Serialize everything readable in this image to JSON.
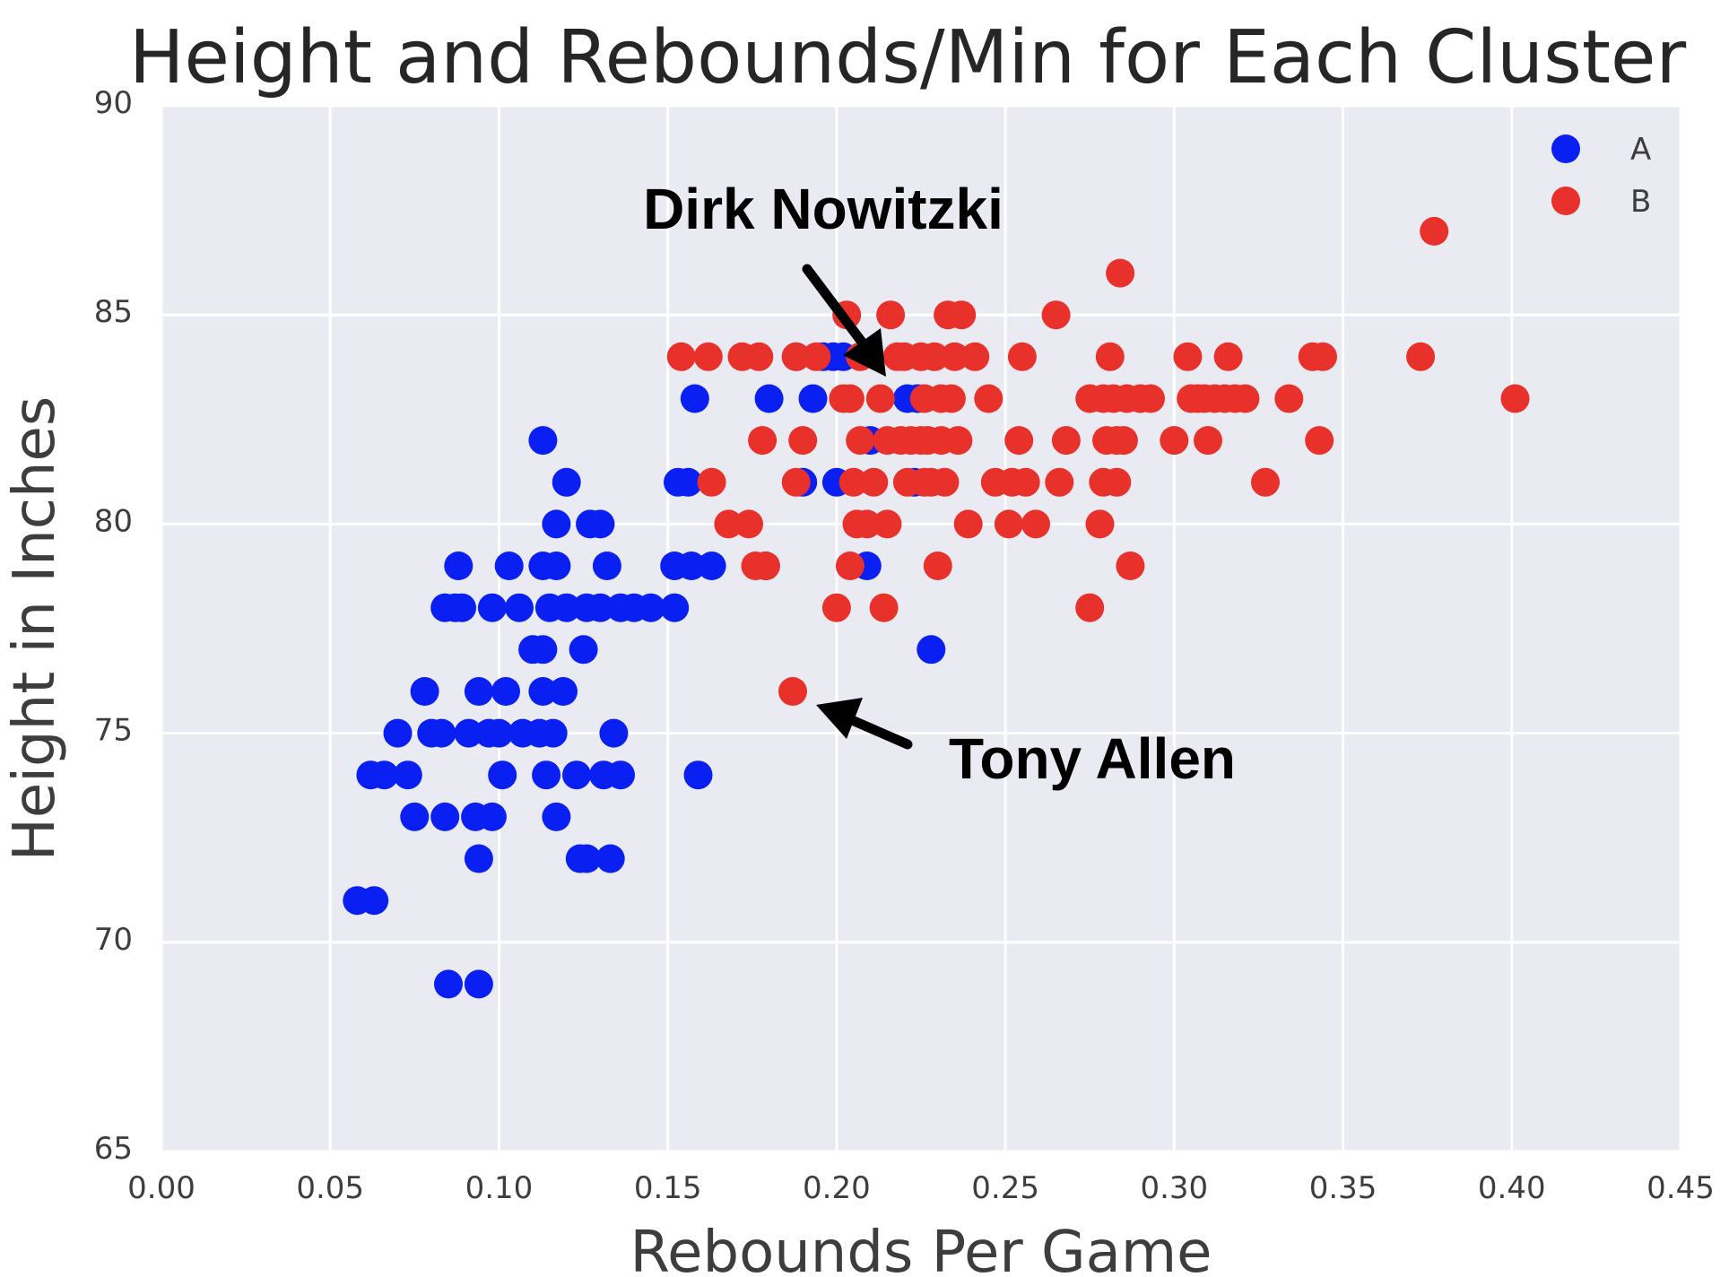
{
  "chart_data": {
    "type": "scatter",
    "title": "Height and Rebounds/Min for Each Cluster",
    "xlabel": "Rebounds Per Game",
    "ylabel": "Height in Inches",
    "xlim": [
      0.0,
      0.45
    ],
    "ylim": [
      65,
      90
    ],
    "xticks": [
      "0.00",
      "0.05",
      "0.10",
      "0.15",
      "0.20",
      "0.25",
      "0.30",
      "0.35",
      "0.40",
      "0.45"
    ],
    "yticks": [
      "65",
      "70",
      "75",
      "80",
      "85",
      "90"
    ],
    "grid": true,
    "legend_position": "top-right",
    "background_color": "#eaeaf2",
    "series": [
      {
        "name": "A",
        "color": "#0a1ff2",
        "points": [
          [
            0.058,
            71
          ],
          [
            0.063,
            71
          ],
          [
            0.062,
            74
          ],
          [
            0.066,
            74
          ],
          [
            0.073,
            74
          ],
          [
            0.07,
            75
          ],
          [
            0.075,
            73
          ],
          [
            0.078,
            76
          ],
          [
            0.08,
            75
          ],
          [
            0.083,
            75
          ],
          [
            0.084,
            73
          ],
          [
            0.084,
            78
          ],
          [
            0.087,
            78
          ],
          [
            0.088,
            79
          ],
          [
            0.089,
            78
          ],
          [
            0.085,
            69
          ],
          [
            0.094,
            69
          ],
          [
            0.091,
            75
          ],
          [
            0.093,
            73
          ],
          [
            0.094,
            76
          ],
          [
            0.094,
            72
          ],
          [
            0.097,
            75
          ],
          [
            0.098,
            78
          ],
          [
            0.098,
            73
          ],
          [
            0.1,
            75
          ],
          [
            0.101,
            74
          ],
          [
            0.102,
            76
          ],
          [
            0.103,
            79
          ],
          [
            0.106,
            78
          ],
          [
            0.107,
            75
          ],
          [
            0.11,
            77
          ],
          [
            0.112,
            75
          ],
          [
            0.113,
            77
          ],
          [
            0.113,
            79
          ],
          [
            0.113,
            82
          ],
          [
            0.113,
            76
          ],
          [
            0.114,
            74
          ],
          [
            0.115,
            78
          ],
          [
            0.116,
            75
          ],
          [
            0.117,
            80
          ],
          [
            0.117,
            79
          ],
          [
            0.117,
            73
          ],
          [
            0.119,
            76
          ],
          [
            0.12,
            81
          ],
          [
            0.12,
            78
          ],
          [
            0.123,
            74
          ],
          [
            0.124,
            72
          ],
          [
            0.125,
            77
          ],
          [
            0.126,
            78
          ],
          [
            0.126,
            72
          ],
          [
            0.127,
            80
          ],
          [
            0.13,
            80
          ],
          [
            0.13,
            78
          ],
          [
            0.131,
            74
          ],
          [
            0.132,
            79
          ],
          [
            0.133,
            72
          ],
          [
            0.134,
            75
          ],
          [
            0.136,
            74
          ],
          [
            0.136,
            78
          ],
          [
            0.14,
            78
          ],
          [
            0.145,
            78
          ],
          [
            0.152,
            79
          ],
          [
            0.153,
            81
          ],
          [
            0.152,
            78
          ],
          [
            0.156,
            81
          ],
          [
            0.157,
            79
          ],
          [
            0.158,
            83
          ],
          [
            0.159,
            74
          ],
          [
            0.163,
            79
          ],
          [
            0.179,
            79
          ],
          [
            0.18,
            83
          ],
          [
            0.188,
            84
          ],
          [
            0.19,
            81
          ],
          [
            0.193,
            83
          ],
          [
            0.196,
            84
          ],
          [
            0.199,
            84
          ],
          [
            0.2,
            81
          ],
          [
            0.202,
            84
          ],
          [
            0.209,
            79
          ],
          [
            0.21,
            82
          ],
          [
            0.221,
            83
          ],
          [
            0.223,
            81
          ],
          [
            0.224,
            83
          ],
          [
            0.228,
            77
          ]
        ]
      },
      {
        "name": "B",
        "color": "#e8312a",
        "points": [
          [
            0.154,
            84
          ],
          [
            0.162,
            84
          ],
          [
            0.163,
            81
          ],
          [
            0.168,
            80
          ],
          [
            0.172,
            84
          ],
          [
            0.174,
            80
          ],
          [
            0.176,
            79
          ],
          [
            0.177,
            84
          ],
          [
            0.178,
            82
          ],
          [
            0.179,
            79
          ],
          [
            0.188,
            84
          ],
          [
            0.188,
            81
          ],
          [
            0.187,
            76
          ],
          [
            0.19,
            82
          ],
          [
            0.194,
            84
          ],
          [
            0.2,
            78
          ],
          [
            0.202,
            83
          ],
          [
            0.203,
            85
          ],
          [
            0.204,
            83
          ],
          [
            0.204,
            79
          ],
          [
            0.205,
            81
          ],
          [
            0.206,
            80
          ],
          [
            0.207,
            82
          ],
          [
            0.207,
            84
          ],
          [
            0.209,
            80
          ],
          [
            0.211,
            81
          ],
          [
            0.213,
            83
          ],
          [
            0.214,
            78
          ],
          [
            0.215,
            82
          ],
          [
            0.215,
            80
          ],
          [
            0.216,
            85
          ],
          [
            0.218,
            84
          ],
          [
            0.219,
            82
          ],
          [
            0.22,
            84
          ],
          [
            0.221,
            81
          ],
          [
            0.222,
            82
          ],
          [
            0.225,
            84
          ],
          [
            0.225,
            82
          ],
          [
            0.226,
            83
          ],
          [
            0.226,
            81
          ],
          [
            0.227,
            82
          ],
          [
            0.228,
            81
          ],
          [
            0.229,
            84
          ],
          [
            0.23,
            79
          ],
          [
            0.231,
            83
          ],
          [
            0.231,
            82
          ],
          [
            0.232,
            81
          ],
          [
            0.233,
            85
          ],
          [
            0.234,
            83
          ],
          [
            0.235,
            84
          ],
          [
            0.236,
            82
          ],
          [
            0.237,
            85
          ],
          [
            0.239,
            80
          ],
          [
            0.241,
            84
          ],
          [
            0.245,
            83
          ],
          [
            0.247,
            81
          ],
          [
            0.251,
            80
          ],
          [
            0.252,
            81
          ],
          [
            0.254,
            82
          ],
          [
            0.255,
            84
          ],
          [
            0.256,
            81
          ],
          [
            0.259,
            80
          ],
          [
            0.265,
            85
          ],
          [
            0.266,
            81
          ],
          [
            0.268,
            82
          ],
          [
            0.275,
            83
          ],
          [
            0.275,
            78
          ],
          [
            0.278,
            80
          ],
          [
            0.279,
            83
          ],
          [
            0.279,
            81
          ],
          [
            0.28,
            82
          ],
          [
            0.281,
            84
          ],
          [
            0.282,
            83
          ],
          [
            0.283,
            82
          ],
          [
            0.283,
            81
          ],
          [
            0.284,
            86
          ],
          [
            0.285,
            82
          ],
          [
            0.286,
            83
          ],
          [
            0.287,
            79
          ],
          [
            0.29,
            83
          ],
          [
            0.293,
            83
          ],
          [
            0.3,
            82
          ],
          [
            0.304,
            84
          ],
          [
            0.305,
            83
          ],
          [
            0.307,
            83
          ],
          [
            0.309,
            83
          ],
          [
            0.31,
            82
          ],
          [
            0.312,
            83
          ],
          [
            0.315,
            83
          ],
          [
            0.316,
            84
          ],
          [
            0.318,
            83
          ],
          [
            0.321,
            83
          ],
          [
            0.327,
            81
          ],
          [
            0.334,
            83
          ],
          [
            0.341,
            84
          ],
          [
            0.343,
            82
          ],
          [
            0.344,
            84
          ],
          [
            0.373,
            84
          ],
          [
            0.377,
            87
          ],
          [
            0.401,
            83
          ]
        ]
      }
    ],
    "annotations": [
      {
        "text": "Dirk Nowitzki",
        "point": [
          0.22,
          83
        ]
      },
      {
        "text": "Tony Allen",
        "point": [
          0.187,
          76
        ]
      }
    ]
  }
}
